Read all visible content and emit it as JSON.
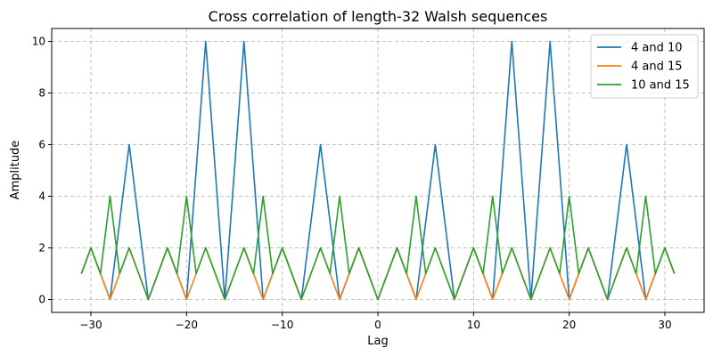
{
  "chart_data": {
    "type": "line",
    "title": "Cross correlation of length-32 Walsh sequences",
    "xlabel": "Lag",
    "ylabel": "Amplitude",
    "xlim": [
      -34.1,
      34.1
    ],
    "ylim": [
      -0.5,
      10.5
    ],
    "xticks": [
      -30,
      -20,
      -10,
      0,
      10,
      20,
      30
    ],
    "yticks": [
      0,
      2,
      4,
      6,
      8,
      10
    ],
    "grid": true,
    "legend_placement": "top-right",
    "x": [
      -31,
      -30,
      -29,
      -28,
      -27,
      -26,
      -25,
      -24,
      -23,
      -22,
      -21,
      -20,
      -19,
      -18,
      -17,
      -16,
      -15,
      -14,
      -13,
      -12,
      -11,
      -10,
      -9,
      -8,
      -7,
      -6,
      -5,
      -4,
      -3,
      -2,
      -1,
      0,
      1,
      2,
      3,
      4,
      5,
      6,
      7,
      8,
      9,
      10,
      11,
      12,
      13,
      14,
      15,
      16,
      17,
      18,
      19,
      20,
      21,
      22,
      23,
      24,
      25,
      26,
      27,
      28,
      29,
      30,
      31
    ],
    "series": [
      {
        "name": "4 and 10",
        "color": "#1f77b4",
        "values": [
          1,
          2,
          1,
          0,
          3,
          6,
          3,
          0,
          1,
          2,
          1,
          0,
          5,
          10,
          5,
          0,
          5,
          10,
          5,
          0,
          1,
          2,
          1,
          0,
          3,
          6,
          3,
          0,
          1,
          2,
          1,
          0,
          1,
          2,
          1,
          0,
          3,
          6,
          3,
          0,
          1,
          2,
          1,
          0,
          5,
          10,
          5,
          0,
          5,
          10,
          5,
          0,
          1,
          2,
          1,
          0,
          3,
          6,
          3,
          0,
          1,
          2,
          1
        ]
      },
      {
        "name": "4 and 15",
        "color": "#ff7f0e",
        "values": [
          1,
          2,
          1,
          0,
          1,
          2,
          1,
          0,
          1,
          2,
          1,
          0,
          1,
          2,
          1,
          0,
          1,
          2,
          1,
          0,
          1,
          2,
          1,
          0,
          1,
          2,
          1,
          0,
          1,
          2,
          1,
          0,
          1,
          2,
          1,
          0,
          1,
          2,
          1,
          0,
          1,
          2,
          1,
          0,
          1,
          2,
          1,
          0,
          1,
          2,
          1,
          0,
          1,
          2,
          1,
          0,
          1,
          2,
          1,
          0,
          1,
          2,
          1
        ]
      },
      {
        "name": "10 and 15",
        "color": "#2ca02c",
        "values": [
          1,
          2,
          1,
          4,
          1,
          2,
          1,
          0,
          1,
          2,
          1,
          4,
          1,
          2,
          1,
          0,
          1,
          2,
          1,
          4,
          1,
          2,
          1,
          0,
          1,
          2,
          1,
          4,
          1,
          2,
          1,
          0,
          1,
          2,
          1,
          4,
          1,
          2,
          1,
          0,
          1,
          2,
          1,
          4,
          1,
          2,
          1,
          0,
          1,
          2,
          1,
          4,
          1,
          2,
          1,
          0,
          1,
          2,
          1,
          4,
          1,
          2,
          1
        ]
      }
    ]
  }
}
